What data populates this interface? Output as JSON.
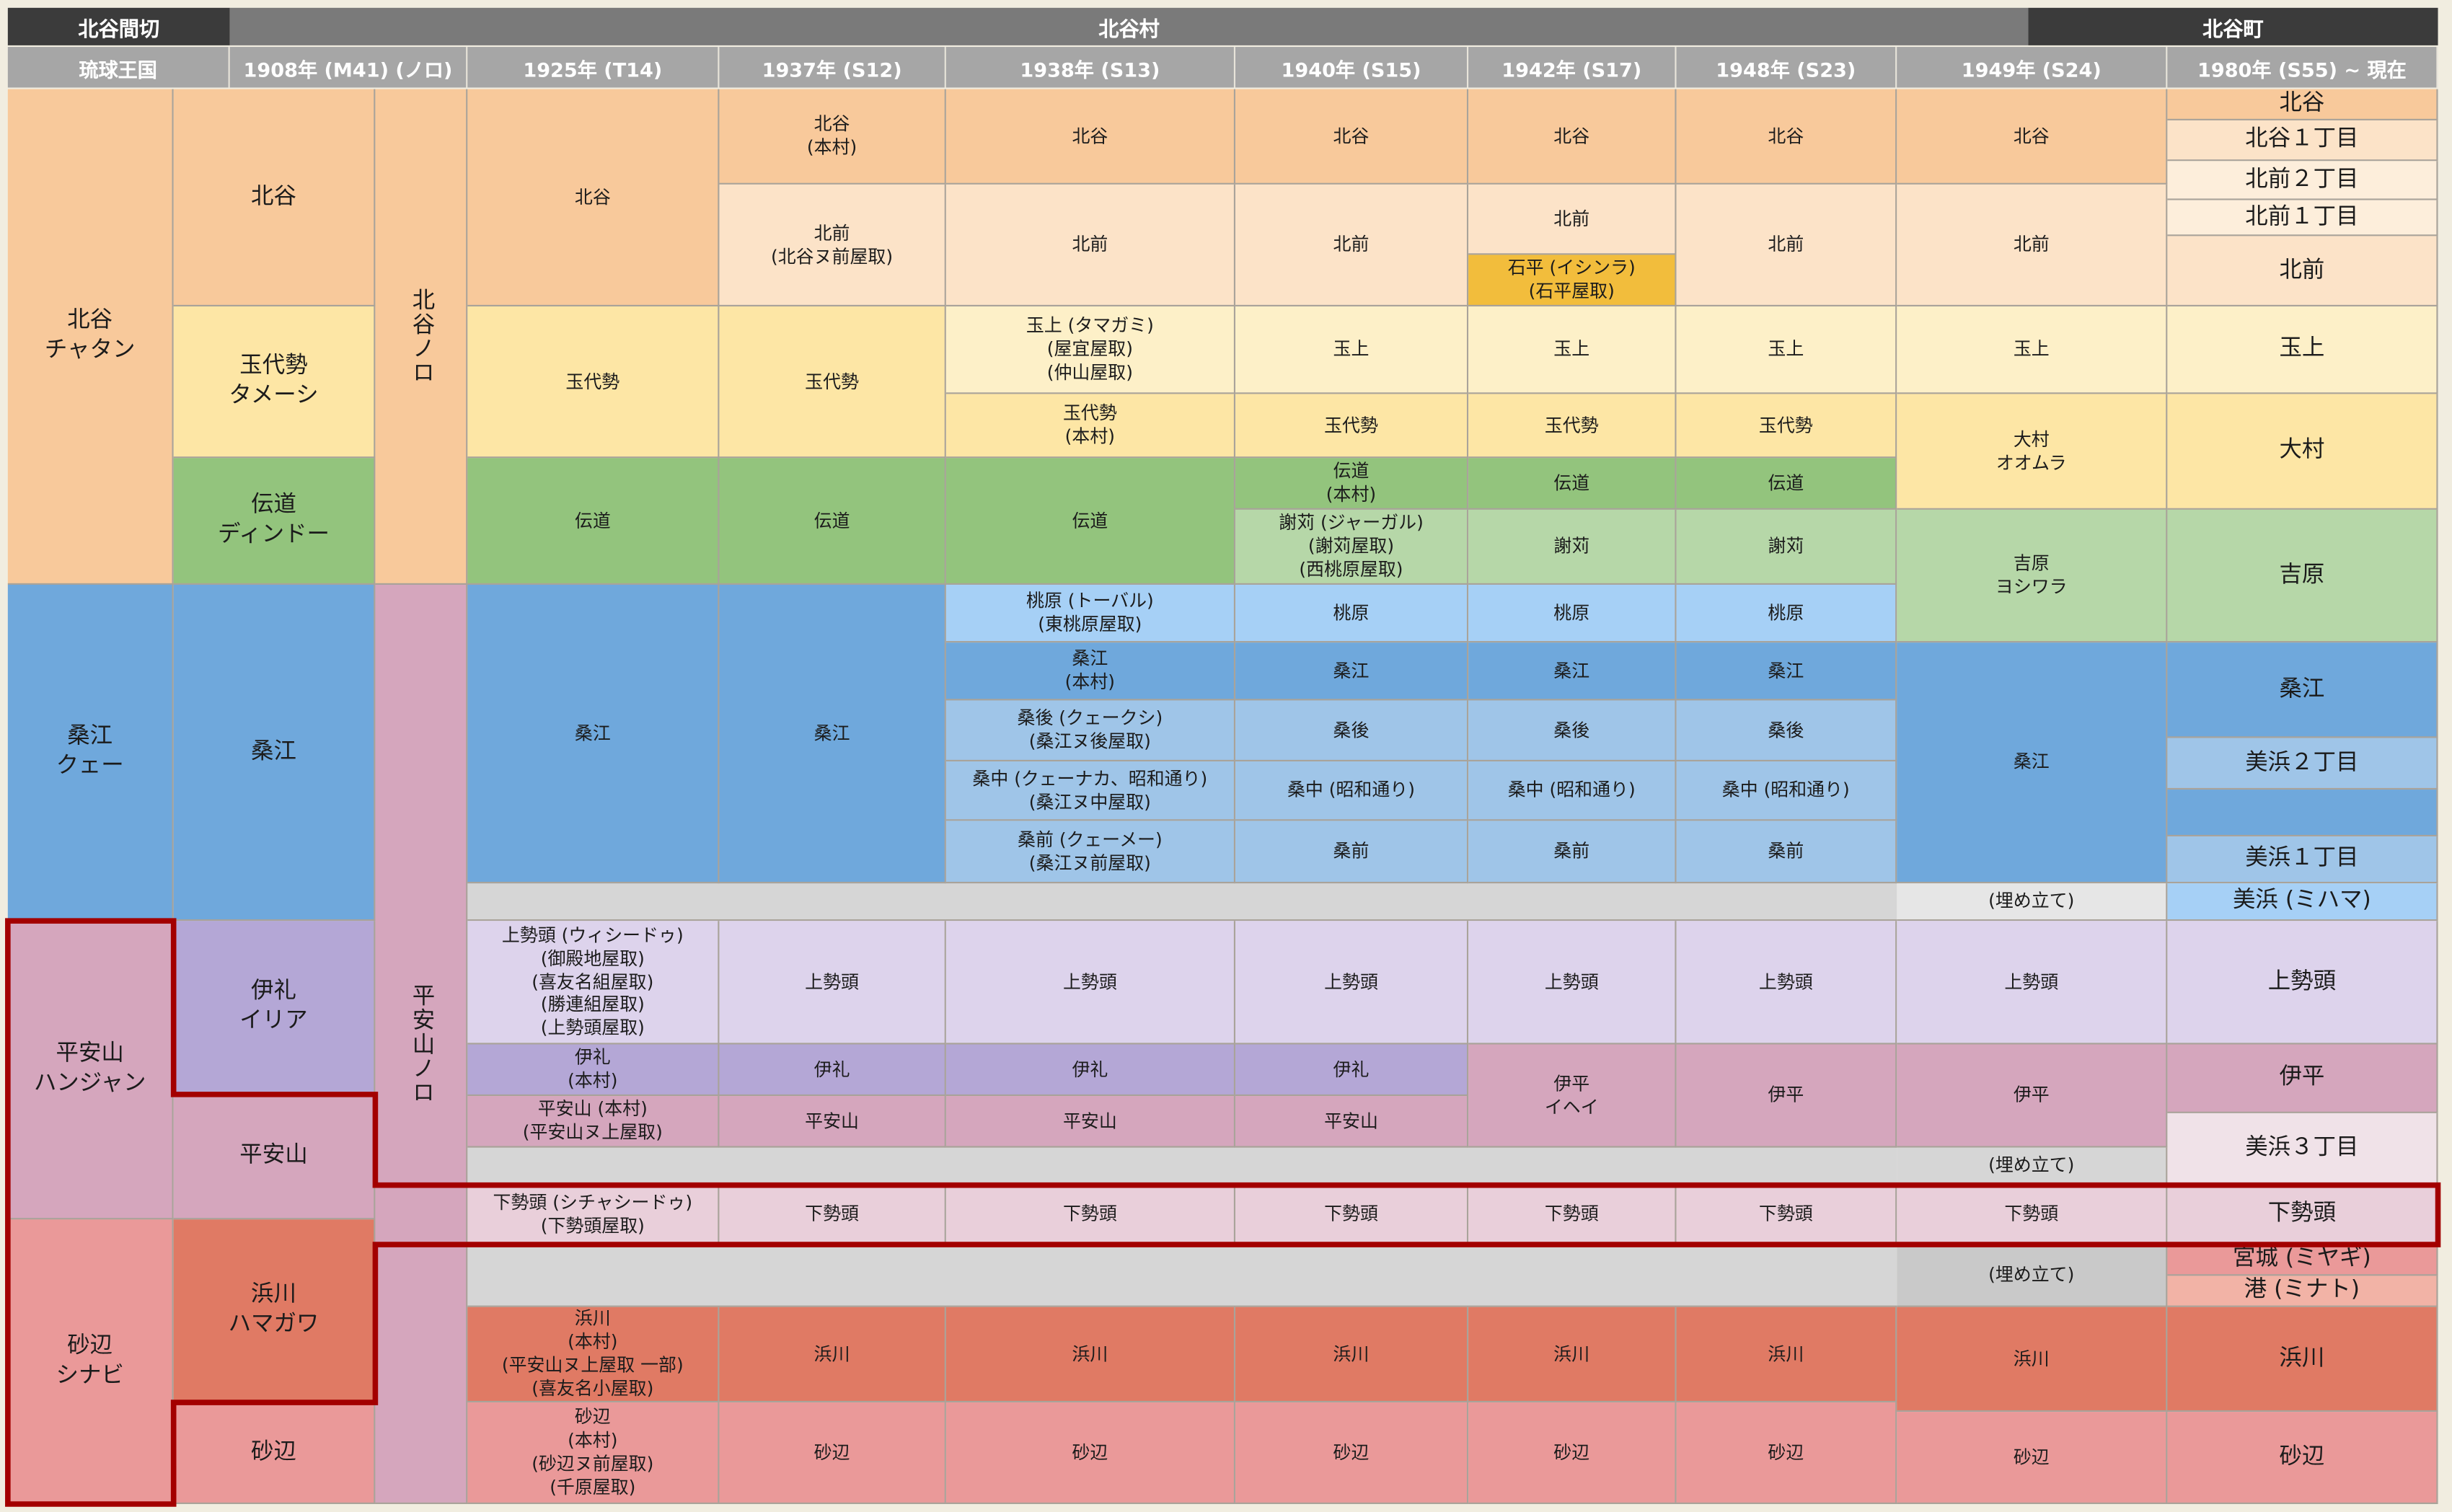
{
  "header": {
    "left": "北谷間切",
    "middle": "北谷村",
    "right": "北谷町"
  },
  "columns": [
    "琉球王国",
    "1908年 (M41) (ノロ)",
    "1925年 (T14)",
    "1937年 (S12)",
    "1938年 (S13)",
    "1940年 (S15)",
    "1942年 (S17)",
    "1948年 (S23)",
    "1949年 (S24)",
    "1980年 (S55) ~ 現在"
  ],
  "colors": {
    "chatan_dark": "#f8c99b",
    "chatan_light": "#fce3c8",
    "chatan_pale": "#fdeedb",
    "tamaditi": "#fde6a5",
    "tamaditi_pale": "#fdf0c8",
    "ishihira": "#f2bd3c",
    "dendo": "#93c47d",
    "dendo_light": "#b6d7a8",
    "kue": "#6fa8dc",
    "kue_mid": "#9fc5e8",
    "kue_pale": "#a6d0f6",
    "iri": "#b4a7d6",
    "uiseedu": "#ddd3ec",
    "hanjan": "#d5a6bd",
    "hanjan_pale": "#e9cfda",
    "hamagawa": "#e07a64",
    "shinabe": "#ea9999",
    "gray": "#d6d6d6",
    "outline": "#a30000"
  },
  "cells": {
    "ryukyu_chatan": "北谷\nチャタン",
    "ryukyu_kue": "桑江\nクェー",
    "ryukyu_hanjan": "平安山\nハンジャン",
    "ryukyu_shinabe": "砂辺\nシナビ",
    "m41_chatan": "北谷",
    "m41_tamaditi": "玉代勢\nタメーシ",
    "m41_dendo": "伝道\nディンドー",
    "m41_kue": "桑江",
    "m41_iri": "伊礼\nイリア",
    "m41_hanjan": "平安山",
    "m41_hamagawa": "浜川\nハマガワ",
    "m41_shinabe": "砂辺",
    "noro_chatan": "北谷ノロ",
    "noro_hanjan": "平安山ノロ",
    "t14_chatan": "北谷",
    "t14_tamaditi": "玉代勢",
    "t14_dendo": "伝道",
    "t14_kue": "桑江",
    "t14_uiseedu": "上勢頭 (ウィシードゥ)\n(御殿地屋取)\n(喜友名組屋取)\n(勝連組屋取)\n(上勢頭屋取)",
    "t14_iri": "伊礼\n(本村)",
    "t14_hanjan": "平安山 (本村)\n(平安山ヌ上屋取)",
    "t14_shiseedu": "下勢頭 (シチャシードゥ)\n(下勢頭屋取)",
    "t14_hamagawa": "浜川\n(本村)\n(平安山ヌ上屋取 一部)\n(喜友名小屋取)",
    "t14_shinabe": "砂辺\n(本村)\n(砂辺ヌ前屋取)\n(千原屋取)",
    "s12_chatan": "北谷\n(本村)",
    "s12_kitamae": "北前\n(北谷ヌ前屋取)",
    "s12_tamaditi": "玉代勢",
    "s12_dendo": "伝道",
    "s12_kue": "桑江",
    "s12_uiseedu": "上勢頭",
    "s12_iri": "伊礼",
    "s12_hanjan": "平安山",
    "s12_shiseedu": "下勢頭",
    "s12_hamagawa": "浜川",
    "s12_shinabe": "砂辺",
    "s13_chatan": "北谷",
    "s13_kitamae": "北前",
    "s13_tamagami": "玉上 (タマガミ)\n(屋宜屋取)\n(仲山屋取)",
    "s13_tamaditi": "玉代勢\n(本村)",
    "s13_dendo": "伝道",
    "s13_tobaru": "桃原 (トーバル)\n(東桃原屋取)",
    "s13_kue": "桑江\n(本村)",
    "s13_kuekushi": "桑後 (クェークシ)\n(桑江ヌ後屋取)",
    "s13_kuenaka": "桑中 (クェーナカ、昭和通り)\n(桑江ヌ中屋取)",
    "s13_kuemae": "桑前 (クェーメー)\n(桑江ヌ前屋取)",
    "s13_uiseedu": "上勢頭",
    "s13_iri": "伊礼",
    "s13_hanjan": "平安山",
    "s13_shiseedu": "下勢頭",
    "s13_hamagawa": "浜川",
    "s13_shinabe": "砂辺",
    "s15_chatan": "北谷",
    "s15_kitamae": "北前",
    "s15_tamagami": "玉上",
    "s15_tamaditi": "玉代勢",
    "s15_dendo": "伝道\n(本村)",
    "s15_jaakaru": "謝苅 (ジャーガル)\n(謝苅屋取)\n(西桃原屋取)",
    "s15_tobaru": "桃原",
    "s15_kue": "桑江",
    "s15_kuekushi": "桑後",
    "s15_kuenaka": "桑中 (昭和通り)",
    "s15_kuemae": "桑前",
    "s15_uiseedu": "上勢頭",
    "s15_iri": "伊礼",
    "s15_hanjan": "平安山",
    "s15_shiseedu": "下勢頭",
    "s15_hamagawa": "浜川",
    "s15_shinabe": "砂辺",
    "s17_chatan": "北谷",
    "s17_kitamae": "北前",
    "s17_ishihira": "石平 (イシンラ)\n(石平屋取)",
    "s17_tamagami": "玉上",
    "s17_tamaditi": "玉代勢",
    "s17_dendo": "伝道",
    "s17_jaakaru": "謝苅",
    "s17_tobaru": "桃原",
    "s17_kue": "桑江",
    "s17_kuekushi": "桑後",
    "s17_kuenaka": "桑中 (昭和通り)",
    "s17_kuemae": "桑前",
    "s17_uiseedu": "上勢頭",
    "s17_ihei": "伊平\nイヘイ",
    "s17_shiseedu": "下勢頭",
    "s17_hamagawa": "浜川",
    "s17_shinabe": "砂辺",
    "s23_chatan": "北谷",
    "s23_kitamae": "北前",
    "s23_tamagami": "玉上",
    "s23_tamaditi": "玉代勢",
    "s23_dendo": "伝道",
    "s23_jaakaru": "謝苅",
    "s23_tobaru": "桃原",
    "s23_kue": "桑江",
    "s23_kuekushi": "桑後",
    "s23_kuenaka": "桑中 (昭和通り)",
    "s23_kuemae": "桑前",
    "s23_uiseedu": "上勢頭",
    "s23_ihei": "伊平",
    "s23_shiseedu": "下勢頭",
    "s23_hamagawa": "浜川",
    "s23_shinabe": "砂辺",
    "s24_chatan": "北谷",
    "s24_kitamae": "北前",
    "s24_tamagami": "玉上",
    "s24_omura": "大村\nオオムラ",
    "s24_yoshiwara": "吉原\nヨシワラ",
    "s24_kue": "桑江",
    "s24_umetate1": "(埋め立て)",
    "s24_uiseedu": "上勢頭",
    "s24_ihei": "伊平",
    "s24_umetate2": "(埋め立て)",
    "s24_shiseedu": "下勢頭",
    "s24_umetate3": "(埋め立て)",
    "s24_hamagawa": "浜川",
    "s24_shinabe": "砂辺",
    "s55_chatan": "北谷",
    "s55_chatan1": "北谷１丁目",
    "s55_kitamae2": "北前２丁目",
    "s55_kitamae1": "北前１丁目",
    "s55_kitamae": "北前",
    "s55_tamagami": "玉上",
    "s55_omura": "大村",
    "s55_yoshiwara": "吉原",
    "s55_kue": "桑江",
    "s55_mihama2": "美浜２丁目",
    "s55_mihama1": "美浜１丁目",
    "s55_mihama": "美浜 (ミハマ)",
    "s55_uiseedu": "上勢頭",
    "s55_ihei": "伊平",
    "s55_mihama3": "美浜３丁目",
    "s55_shiseedu": "下勢頭",
    "s55_miyagi": "宮城 (ミヤギ)",
    "s55_minato": "港 (ミナト)",
    "s55_hamagawa": "浜川",
    "s55_shinabe": "砂辺"
  }
}
